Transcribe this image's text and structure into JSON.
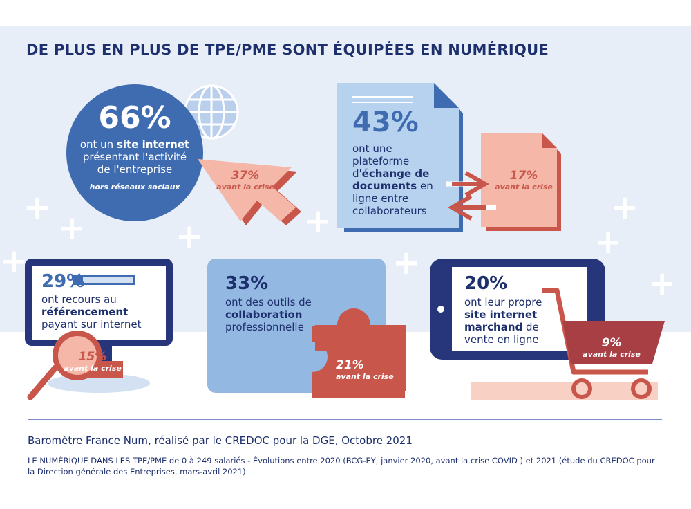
{
  "title": "DE PLUS EN PLUS DE TPE/PME SONT ÉQUIPÉES EN NUMÉRIQUE",
  "stats": {
    "site": {
      "value": "66%",
      "text_before": "ont un",
      "bold": "site internet",
      "text_after1": "présentant l'activité",
      "text_after2": "de l'entreprise",
      "note": "hors réseaux sociaux",
      "before_value": "37%",
      "before_label": "avant la crise"
    },
    "platform": {
      "value": "43%",
      "line1": "ont une",
      "line2": "plateforme",
      "line3_pre": "d'",
      "line3_bold": "échange de",
      "line4_bold": "documents",
      "line4_post": " en",
      "line5": "ligne entre",
      "line6": "collaborateurs",
      "before_value": "17%",
      "before_label": "avant la crise"
    },
    "seo": {
      "value": "29%",
      "line1": "ont recours au",
      "line2_bold": "référencement",
      "line3": "payant sur internet",
      "before_value": "15%",
      "before_label": "avant la crise"
    },
    "collab": {
      "value": "33%",
      "line1": "ont des outils de",
      "line2_bold": "collaboration",
      "line3": "professionnelle",
      "before_value": "21%",
      "before_label": "avant la crise"
    },
    "ecommerce": {
      "value": "20%",
      "line1": "ont leur propre",
      "line2_bold": "site internet",
      "line3_bold": "marchand",
      "line3_post": " de",
      "line4": "vente en ligne",
      "before_value": "9%",
      "before_label": "avant la crise"
    }
  },
  "source": "Baromètre France Num, réalisé par le CREDOC pour la DGE, Octobre 2021",
  "note": "LE NUMÉRIQUE DANS LES TPE/PME de 0 à 249 salariés - Évolutions entre 2020 (BCG-EY, janvier 2020, avant la crise COVID ) et 2021 (étude du CREDOC pour la Direction générale des Entreprises, mars-avril 2021)",
  "colors": {
    "navy": "#1e2f6e",
    "blue": "#3f6cb0",
    "lightblue": "#a8c6e8",
    "salmon": "#f4b7a8",
    "red": "#c9564a"
  }
}
